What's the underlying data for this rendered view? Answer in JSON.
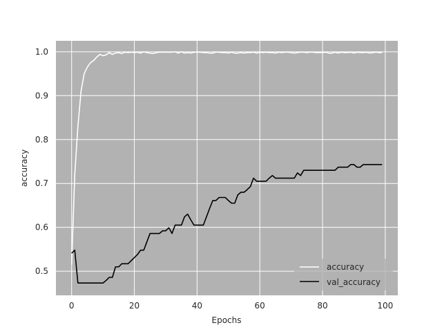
{
  "chart_data": {
    "type": "line",
    "title": "",
    "xlabel": "Epochs",
    "ylabel": "accuracy",
    "xlim": [
      -5,
      104
    ],
    "ylim": [
      0.445,
      1.025
    ],
    "xticks": [
      0,
      20,
      40,
      60,
      80,
      100
    ],
    "yticks": [
      0.5,
      0.6,
      0.7,
      0.8,
      0.9,
      1.0
    ],
    "xtick_labels": [
      "0",
      "20",
      "40",
      "60",
      "80",
      "100"
    ],
    "ytick_labels": [
      "0.5",
      "0.6",
      "0.7",
      "0.8",
      "0.9",
      "1.0"
    ],
    "grid": true,
    "background": "#b2b2b2",
    "legend": "lower-right",
    "series": [
      {
        "name": "accuracy",
        "color": "#ffffff",
        "x": [
          0,
          1,
          2,
          3,
          4,
          5,
          6,
          7,
          8,
          9,
          10,
          11,
          12,
          13,
          14,
          15,
          16,
          17,
          18,
          19,
          20,
          21,
          22,
          23,
          24,
          25,
          26,
          27,
          28,
          29,
          30,
          31,
          32,
          33,
          34,
          35,
          36,
          37,
          38,
          39,
          40,
          41,
          42,
          43,
          44,
          45,
          46,
          47,
          48,
          49,
          50,
          51,
          52,
          53,
          54,
          55,
          56,
          57,
          58,
          59,
          60,
          61,
          62,
          63,
          64,
          65,
          66,
          67,
          68,
          69,
          70,
          71,
          72,
          73,
          74,
          75,
          76,
          77,
          78,
          79,
          80,
          81,
          82,
          83,
          84,
          85,
          86,
          87,
          88,
          89,
          90,
          91,
          92,
          93,
          94,
          95,
          96,
          97,
          98,
          99
        ],
        "y": [
          0.515,
          0.72,
          0.83,
          0.91,
          0.95,
          0.965,
          0.975,
          0.98,
          0.988,
          0.994,
          0.991,
          0.993,
          0.998,
          0.994,
          0.997,
          0.998,
          0.996,
          0.999,
          0.998,
          0.999,
          0.998,
          0.999,
          0.997,
          1.0,
          0.998,
          0.997,
          0.996,
          0.998,
          0.999,
          0.999,
          0.999,
          0.999,
          0.999,
          1.0,
          0.997,
          1.0,
          0.997,
          0.998,
          0.997,
          0.999,
          0.999,
          0.999,
          0.998,
          0.998,
          0.997,
          0.997,
          0.999,
          0.999,
          0.998,
          0.998,
          0.997,
          0.999,
          0.997,
          0.997,
          0.998,
          0.997,
          0.998,
          0.998,
          0.999,
          0.997,
          0.999,
          0.998,
          0.999,
          0.998,
          0.998,
          0.997,
          0.999,
          0.998,
          0.999,
          0.999,
          0.998,
          0.997,
          0.998,
          0.999,
          0.999,
          0.998,
          0.999,
          0.999,
          0.998,
          0.998,
          0.998,
          0.999,
          0.997,
          0.997,
          0.999,
          0.997,
          0.999,
          0.998,
          0.998,
          0.999,
          0.997,
          0.999,
          0.998,
          0.998,
          0.999,
          0.997,
          0.998,
          0.999,
          0.998,
          0.998
        ]
      },
      {
        "name": "val_accuracy",
        "color": "#000000",
        "x": [
          0,
          1,
          2,
          3,
          4,
          5,
          6,
          7,
          8,
          9,
          10,
          11,
          12,
          13,
          14,
          15,
          16,
          17,
          18,
          19,
          20,
          21,
          22,
          23,
          24,
          25,
          26,
          27,
          28,
          29,
          30,
          31,
          32,
          33,
          34,
          35,
          36,
          37,
          38,
          39,
          40,
          41,
          42,
          43,
          44,
          45,
          46,
          47,
          48,
          49,
          50,
          51,
          52,
          53,
          54,
          55,
          56,
          57,
          58,
          59,
          60,
          61,
          62,
          63,
          64,
          65,
          66,
          67,
          68,
          69,
          70,
          71,
          72,
          73,
          74,
          75,
          76,
          77,
          78,
          79,
          80,
          81,
          82,
          83,
          84,
          85,
          86,
          87,
          88,
          89,
          90,
          91,
          92,
          93,
          94,
          95,
          96,
          97,
          98,
          99
        ],
        "y": [
          0.541,
          0.548,
          0.473,
          0.473,
          0.473,
          0.473,
          0.473,
          0.473,
          0.473,
          0.473,
          0.473,
          0.479,
          0.486,
          0.486,
          0.51,
          0.51,
          0.517,
          0.517,
          0.517,
          0.524,
          0.531,
          0.538,
          0.548,
          0.548,
          0.567,
          0.586,
          0.586,
          0.586,
          0.586,
          0.592,
          0.592,
          0.599,
          0.586,
          0.605,
          0.605,
          0.605,
          0.624,
          0.63,
          0.617,
          0.605,
          0.605,
          0.605,
          0.605,
          0.624,
          0.643,
          0.661,
          0.661,
          0.668,
          0.668,
          0.668,
          0.661,
          0.655,
          0.655,
          0.674,
          0.68,
          0.68,
          0.686,
          0.693,
          0.712,
          0.705,
          0.705,
          0.705,
          0.705,
          0.712,
          0.718,
          0.712,
          0.712,
          0.712,
          0.712,
          0.712,
          0.712,
          0.712,
          0.724,
          0.718,
          0.73,
          0.73,
          0.73,
          0.73,
          0.73,
          0.73,
          0.73,
          0.73,
          0.73,
          0.73,
          0.73,
          0.737,
          0.737,
          0.737,
          0.737,
          0.743,
          0.743,
          0.737,
          0.737,
          0.743,
          0.743,
          0.743,
          0.743,
          0.743,
          0.743,
          0.743
        ]
      }
    ]
  }
}
